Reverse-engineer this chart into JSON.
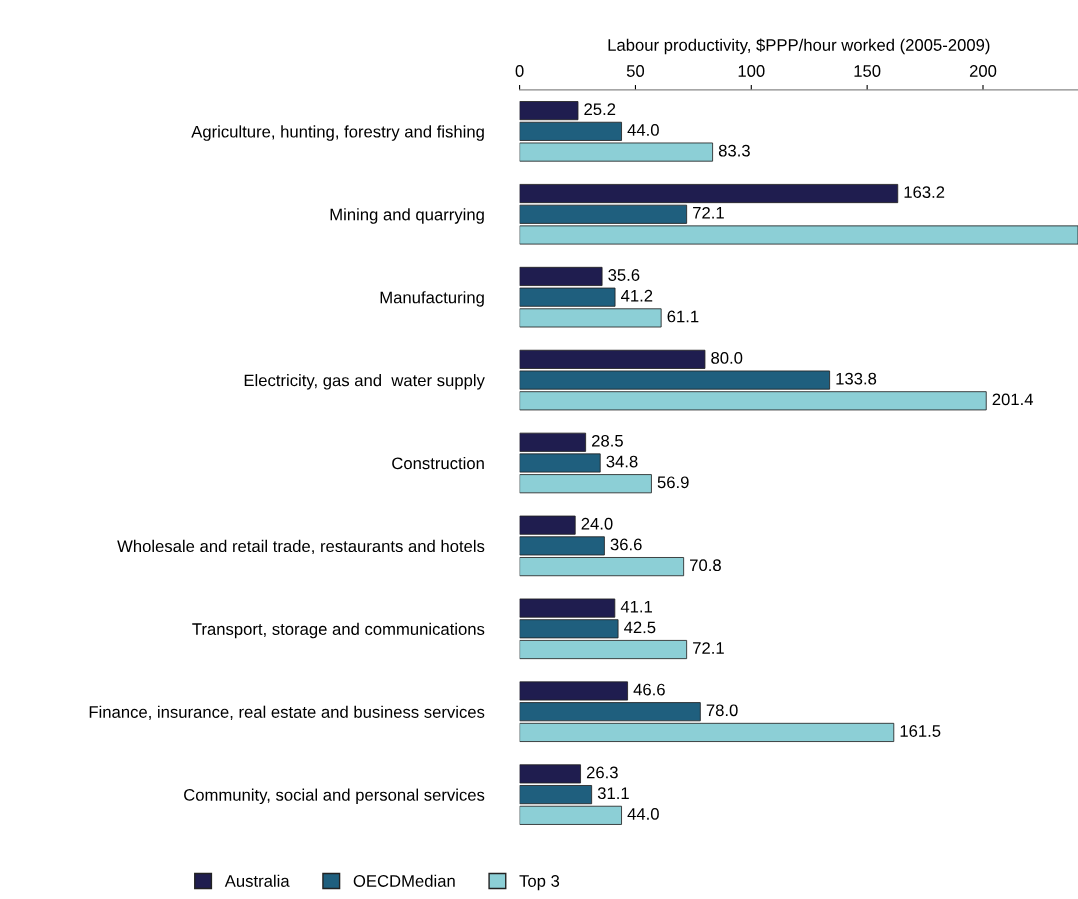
{
  "chart_data": {
    "type": "bar",
    "orientation": "horizontal",
    "xlabel": "Labour productivity, $PPP/hour worked (2005-2009)",
    "categories": [
      "Agriculture, hunting, forestry and fishing",
      "Mining and quarrying",
      "Manufacturing",
      "Electricity, gas and  water supply",
      "Construction",
      "Wholesale and retail trade, restaurants and hotels",
      "Transport, storage and communications",
      "Finance, insurance, real estate and business services",
      "Community, social and personal services"
    ],
    "series": [
      {
        "name": "Australia",
        "color": "#1f1d4f",
        "values": [
          25.2,
          163.2,
          35.6,
          80.0,
          28.5,
          24.0,
          41.1,
          46.6,
          26.3
        ],
        "value_labels": [
          "25.2",
          "163.2",
          "35.6",
          "80.0",
          "28.5",
          "24.0",
          "41.1",
          "46.6",
          "26.3"
        ]
      },
      {
        "name": "OECDMedian",
        "color": "#1f5f7e",
        "values": [
          44.0,
          72.1,
          41.2,
          133.8,
          34.8,
          36.6,
          42.5,
          78.0,
          31.1
        ],
        "value_labels": [
          "44.0",
          "72.1",
          "41.2",
          "133.8",
          "34.8",
          "36.6",
          "42.5",
          "78.0",
          "31.1"
        ]
      },
      {
        "name": "Top 3",
        "color": "#8ccfd6",
        "values": [
          83.3,
          241,
          61.1,
          201.4,
          56.9,
          70.8,
          72.1,
          161.5,
          44.0
        ],
        "value_labels": [
          "83.3",
          null,
          "61.1",
          "201.4",
          "56.9",
          "70.8",
          "72.1",
          "161.5",
          "44.0"
        ]
      }
    ],
    "xlim": [
      0,
      241
    ],
    "xticks": [
      0,
      50,
      100,
      150,
      200
    ],
    "legend": "bottom",
    "grid": false
  }
}
